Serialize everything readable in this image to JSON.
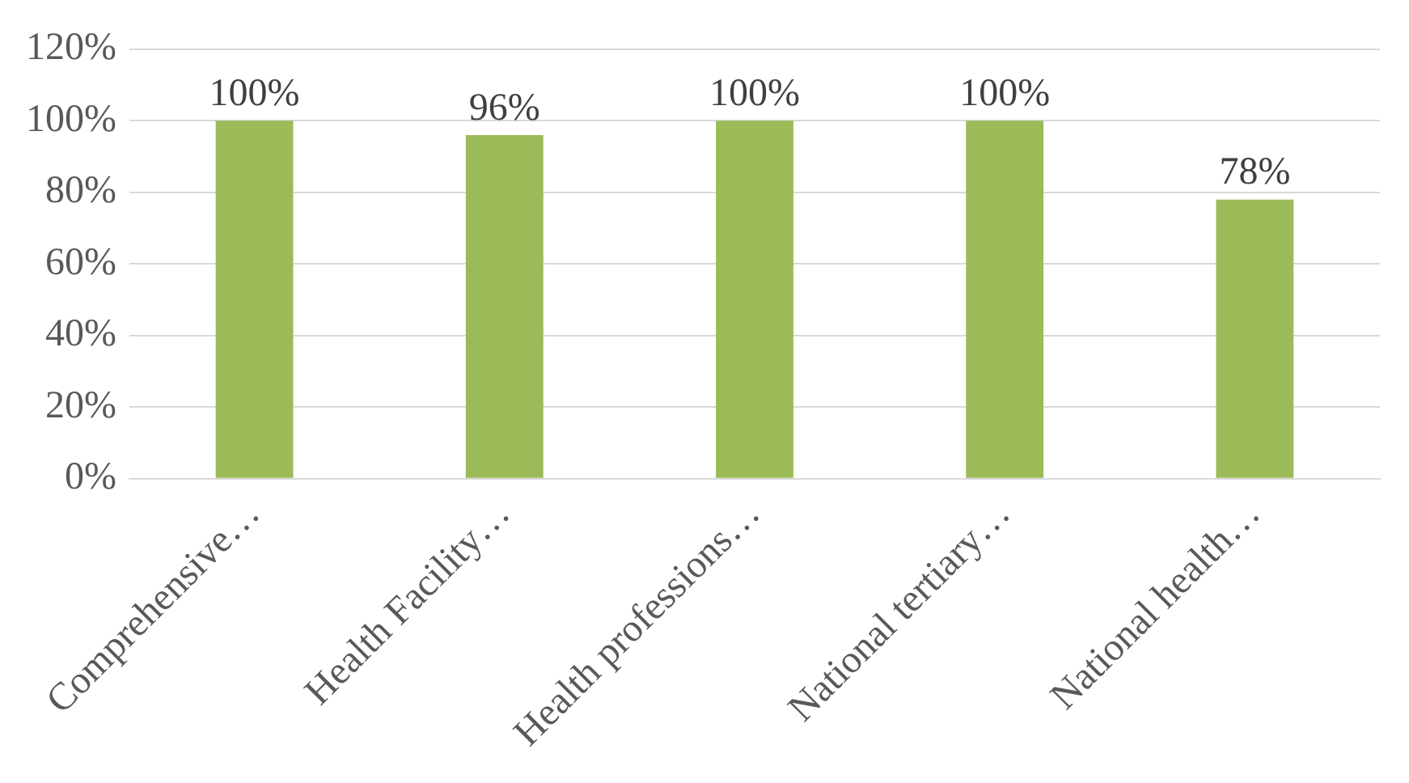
{
  "chart_data": {
    "type": "bar",
    "categories": [
      "Comprehensive…",
      "Health Facility…",
      "Health professions…",
      "National tertiary…",
      "National health…"
    ],
    "values": [
      100,
      96,
      100,
      100,
      78
    ],
    "value_labels": [
      "100%",
      "96%",
      "100%",
      "100%",
      "78%"
    ],
    "color": "#9bbb59",
    "ylim": [
      0,
      120
    ],
    "yticks": [
      {
        "value": 0,
        "label": "0%"
      },
      {
        "value": 20,
        "label": "20%"
      },
      {
        "value": 40,
        "label": "40%"
      },
      {
        "value": 60,
        "label": "60%"
      },
      {
        "value": 80,
        "label": "80%"
      },
      {
        "value": 100,
        "label": "100%"
      },
      {
        "value": 120,
        "label": "120%"
      }
    ],
    "grid": "y",
    "legend": false
  }
}
